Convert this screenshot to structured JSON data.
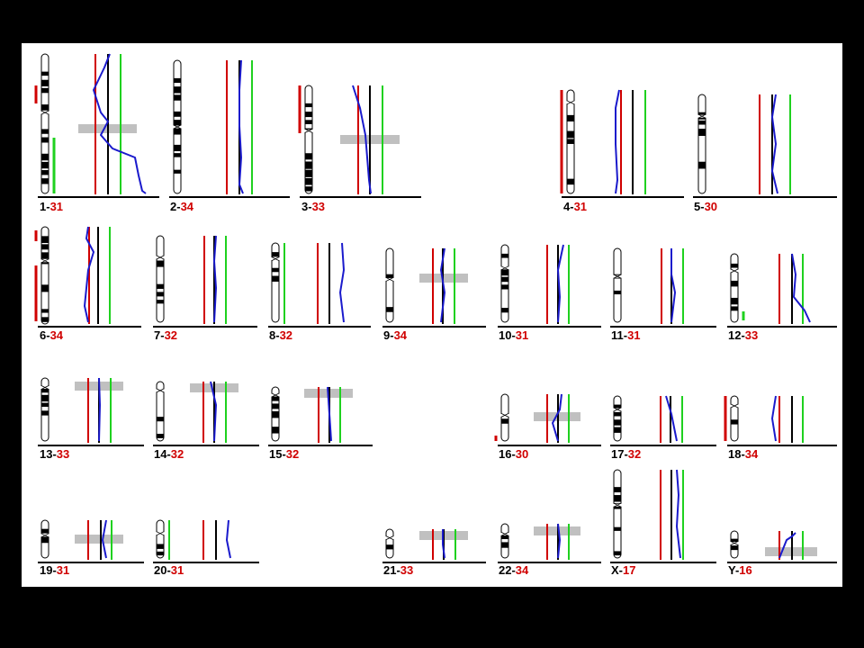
{
  "colors": {
    "ratio_threshold_low": "#d00000",
    "ratio_midline": "#000000",
    "ratio_threshold_high": "#1fd11f",
    "profile": "#1a1acc",
    "highlight_band": "#c0c0c0",
    "label_number": "#000000",
    "label_count": "#d00000"
  },
  "panels": [
    {
      "id": "1",
      "chrom": "1",
      "count": "31"
    },
    {
      "id": "2",
      "chrom": "2",
      "count": "34"
    },
    {
      "id": "3",
      "chrom": "3",
      "count": "33"
    },
    {
      "id": "4",
      "chrom": "4",
      "count": "31"
    },
    {
      "id": "5",
      "chrom": "5",
      "count": "30"
    },
    {
      "id": "6",
      "chrom": "6",
      "count": "34"
    },
    {
      "id": "7",
      "chrom": "7",
      "count": "32"
    },
    {
      "id": "8",
      "chrom": "8",
      "count": "32"
    },
    {
      "id": "9",
      "chrom": "9",
      "count": "34"
    },
    {
      "id": "10",
      "chrom": "10",
      "count": "31"
    },
    {
      "id": "11",
      "chrom": "11",
      "count": "31"
    },
    {
      "id": "12",
      "chrom": "12",
      "count": "33"
    },
    {
      "id": "13",
      "chrom": "13",
      "count": "33"
    },
    {
      "id": "14",
      "chrom": "14",
      "count": "32"
    },
    {
      "id": "15",
      "chrom": "15",
      "count": "32"
    },
    {
      "id": "16",
      "chrom": "16",
      "count": "30"
    },
    {
      "id": "17",
      "chrom": "17",
      "count": "32"
    },
    {
      "id": "18",
      "chrom": "18",
      "count": "34"
    },
    {
      "id": "19",
      "chrom": "19",
      "count": "31"
    },
    {
      "id": "20",
      "chrom": "20",
      "count": "31"
    },
    {
      "id": "21",
      "chrom": "21",
      "count": "33"
    },
    {
      "id": "22",
      "chrom": "22",
      "count": "34"
    },
    {
      "id": "X",
      "chrom": "X",
      "count": "17"
    },
    {
      "id": "Y",
      "chrom": "Y",
      "count": "16"
    }
  ]
}
